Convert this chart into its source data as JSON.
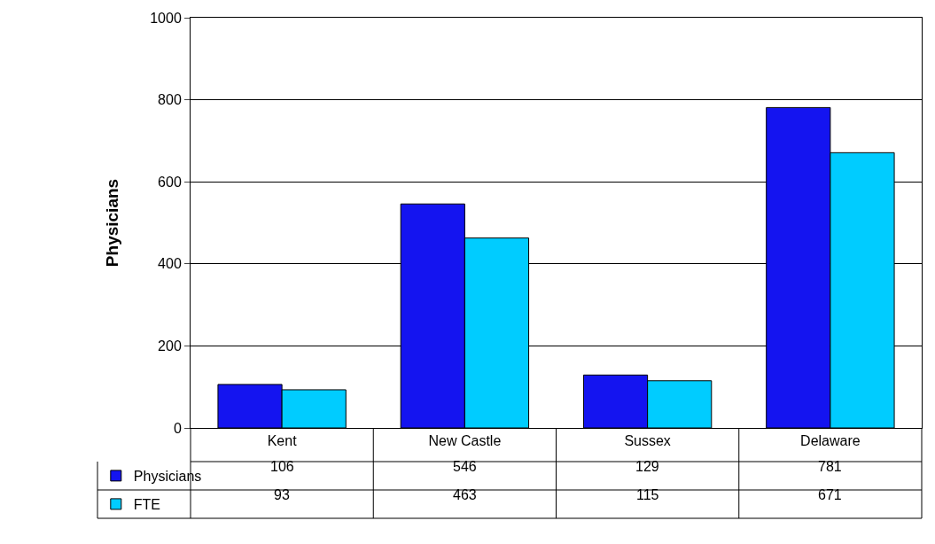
{
  "chart_data": {
    "type": "bar",
    "ylabel": "Physicians",
    "categories": [
      "Kent",
      "New Castle",
      "Sussex",
      "Delaware"
    ],
    "series": [
      {
        "name": "Physicians",
        "color": "#1414f0",
        "values": [
          106,
          546,
          129,
          781
        ]
      },
      {
        "name": "FTE",
        "color": "#00ccff",
        "values": [
          93,
          463,
          115,
          671
        ]
      }
    ],
    "ylim": [
      0,
      1000
    ],
    "yticks": [
      0,
      200,
      400,
      600,
      800,
      1000
    ],
    "grid": "y",
    "data_labels": true,
    "legend": "bottom left"
  }
}
